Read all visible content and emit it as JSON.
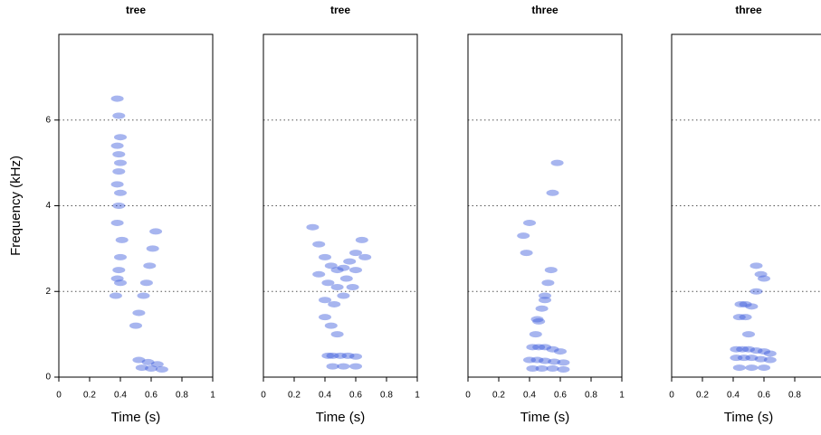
{
  "chart_data": [
    {
      "type": "spectrogram",
      "title": "tree",
      "x_label": "Time (s)",
      "y_label": "Frequency (kHz)",
      "show_yaxis": true,
      "xlim": [
        0,
        1
      ],
      "ylim": [
        0,
        8
      ],
      "xticks": [
        0,
        0.2,
        0.4,
        0.6,
        0.8,
        1
      ],
      "yticks": [
        0,
        2,
        4,
        6
      ],
      "grid": true,
      "color": "#3b5bdb",
      "x": [
        0.38,
        0.39,
        0.4,
        0.38,
        0.39,
        0.4,
        0.39,
        0.38,
        0.4,
        0.39,
        0.38,
        0.41,
        0.4,
        0.39,
        0.4,
        0.37,
        0.38,
        0.5,
        0.52,
        0.55,
        0.57,
        0.59,
        0.61,
        0.63,
        0.52,
        0.58,
        0.64,
        0.54,
        0.6,
        0.67
      ],
      "values": [
        6.5,
        6.1,
        5.6,
        5.4,
        5.2,
        5.0,
        4.8,
        4.5,
        4.3,
        4.0,
        3.6,
        3.2,
        2.8,
        2.5,
        2.2,
        1.9,
        2.3,
        1.2,
        1.5,
        1.9,
        2.2,
        2.6,
        3.0,
        3.4,
        0.4,
        0.35,
        0.3,
        0.22,
        0.2,
        0.18
      ]
    },
    {
      "type": "spectrogram",
      "title": "tree",
      "x_label": "Time (s)",
      "show_yaxis": false,
      "xlim": [
        0,
        1
      ],
      "ylim": [
        0,
        8
      ],
      "xticks": [
        0,
        0.2,
        0.4,
        0.6,
        0.8,
        1
      ],
      "yticks": [
        0,
        2,
        4,
        6
      ],
      "grid": true,
      "color": "#3b5bdb",
      "x": [
        0.32,
        0.36,
        0.4,
        0.44,
        0.48,
        0.52,
        0.56,
        0.6,
        0.64,
        0.36,
        0.42,
        0.48,
        0.54,
        0.6,
        0.66,
        0.4,
        0.46,
        0.52,
        0.58,
        0.4,
        0.44,
        0.48,
        0.42,
        0.45,
        0.5,
        0.55,
        0.6,
        0.45,
        0.52,
        0.6
      ],
      "values": [
        3.5,
        3.1,
        2.8,
        2.6,
        2.5,
        2.55,
        2.7,
        2.9,
        3.2,
        2.4,
        2.2,
        2.1,
        2.3,
        2.5,
        2.8,
        1.8,
        1.7,
        1.9,
        2.1,
        1.4,
        1.2,
        1.0,
        0.5,
        0.5,
        0.5,
        0.5,
        0.48,
        0.25,
        0.25,
        0.25
      ]
    },
    {
      "type": "spectrogram",
      "title": "three",
      "x_label": "Time (s)",
      "show_yaxis": false,
      "xlim": [
        0,
        1
      ],
      "ylim": [
        0,
        8
      ],
      "xticks": [
        0,
        0.2,
        0.4,
        0.6,
        0.8,
        1
      ],
      "yticks": [
        0,
        2,
        4,
        6
      ],
      "grid": true,
      "color": "#3b5bdb",
      "x": [
        0.36,
        0.38,
        0.4,
        0.55,
        0.58,
        0.44,
        0.46,
        0.48,
        0.5,
        0.52,
        0.54,
        0.42,
        0.46,
        0.5,
        0.55,
        0.6,
        0.4,
        0.45,
        0.5,
        0.56,
        0.62,
        0.42,
        0.48,
        0.55,
        0.62,
        0.45,
        0.5
      ],
      "values": [
        3.3,
        2.9,
        3.6,
        4.3,
        5.0,
        1.0,
        1.3,
        1.6,
        1.9,
        2.2,
        2.5,
        0.7,
        0.7,
        0.7,
        0.65,
        0.6,
        0.4,
        0.4,
        0.38,
        0.36,
        0.34,
        0.2,
        0.2,
        0.2,
        0.18,
        1.35,
        1.8
      ]
    },
    {
      "type": "spectrogram",
      "title": "three",
      "x_label": "Time (s)",
      "show_yaxis": false,
      "xlim": [
        0,
        1
      ],
      "ylim": [
        0,
        8
      ],
      "xticks": [
        0,
        0.2,
        0.4,
        0.6,
        0.8
      ],
      "yticks": [
        0,
        2,
        4,
        6
      ],
      "grid": true,
      "color": "#3b5bdb",
      "x": [
        0.45,
        0.48,
        0.52,
        0.44,
        0.48,
        0.5,
        0.55,
        0.6,
        0.42,
        0.46,
        0.5,
        0.55,
        0.6,
        0.64,
        0.42,
        0.47,
        0.52,
        0.58,
        0.64,
        0.44,
        0.52,
        0.6,
        0.55,
        0.58
      ],
      "values": [
        1.7,
        1.7,
        1.65,
        1.4,
        1.4,
        1.0,
        2.0,
        2.3,
        0.65,
        0.65,
        0.65,
        0.62,
        0.6,
        0.55,
        0.45,
        0.45,
        0.45,
        0.42,
        0.4,
        0.22,
        0.22,
        0.22,
        2.6,
        2.4
      ]
    }
  ]
}
